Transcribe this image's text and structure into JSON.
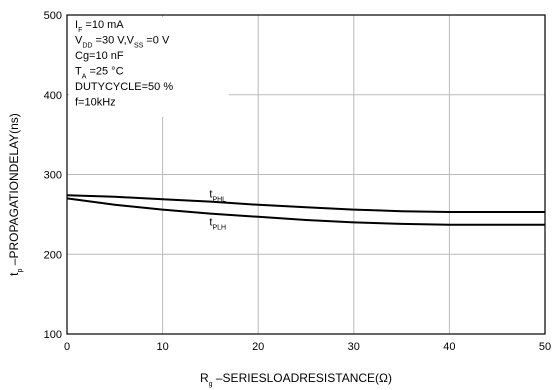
{
  "chart_data": {
    "type": "line",
    "xlabel": {
      "main": "R",
      "sub": "g",
      "rest": " –SERIESLOADRESISTANCE(Ω)"
    },
    "ylabel": {
      "main": "t",
      "sub": "p",
      "rest": " –PROPAGATIONDELAY(ns)"
    },
    "xlim": [
      0,
      50
    ],
    "ylim": [
      100,
      500
    ],
    "x_ticks": [
      "0",
      "10",
      "20",
      "30",
      "40",
      "50"
    ],
    "y_ticks": [
      "100",
      "200",
      "300",
      "400",
      "500"
    ],
    "grid": true,
    "conditions": [
      {
        "main": "I",
        "sub": "F",
        "rest": " =10 mA"
      },
      {
        "main": "V",
        "sub": "DD",
        "rest": " =30 V,V",
        "sub2": "SS",
        "rest2": " =0 V"
      },
      {
        "main": "Cg=10 nF"
      },
      {
        "main": "T",
        "sub": "A",
        "rest": " =25 °C"
      },
      {
        "main": "DUTYCYCLE=50 %"
      },
      {
        "main": "f=10kHz"
      }
    ],
    "series": [
      {
        "name": {
          "main": "t",
          "sub": "PHL"
        },
        "x": [
          0,
          5,
          10,
          15,
          20,
          25,
          30,
          35,
          40,
          45,
          50
        ],
        "y": [
          274,
          272,
          269,
          266,
          262,
          259,
          256,
          254,
          253,
          253,
          253
        ]
      },
      {
        "name": {
          "main": "t",
          "sub": "PLH"
        },
        "x": [
          0,
          5,
          10,
          15,
          20,
          25,
          30,
          35,
          40,
          45,
          50
        ],
        "y": [
          270,
          262,
          256,
          251,
          247,
          243,
          240,
          238,
          237,
          237,
          237
        ]
      }
    ]
  }
}
